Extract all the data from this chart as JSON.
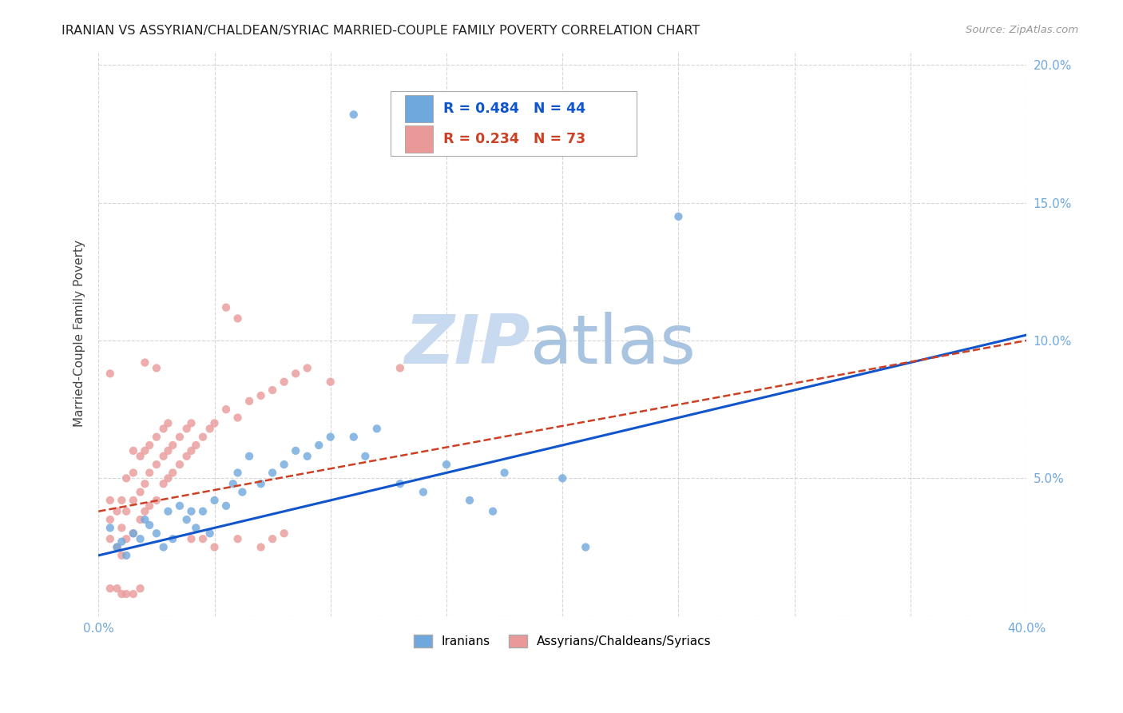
{
  "title": "IRANIAN VS ASSYRIAN/CHALDEAN/SYRIAC MARRIED-COUPLE FAMILY POVERTY CORRELATION CHART",
  "source": "Source: ZipAtlas.com",
  "ylabel": "Married-Couple Family Poverty",
  "xlim": [
    0.0,
    0.4
  ],
  "ylim": [
    0.0,
    0.205
  ],
  "legend_blue_label": "Iranians",
  "legend_pink_label": "Assyrians/Chaldeans/Syriacs",
  "R_blue": 0.484,
  "N_blue": 44,
  "R_pink": 0.234,
  "N_pink": 73,
  "blue_color": "#6fa8dc",
  "pink_color": "#ea9999",
  "trendline_blue_color": "#1155cc",
  "trendline_pink_color": "#cc4125",
  "background_color": "#ffffff",
  "grid_color": "#cccccc",
  "blue_trendline": [
    [
      0.0,
      0.022
    ],
    [
      0.4,
      0.102
    ]
  ],
  "pink_trendline": [
    [
      0.0,
      0.038
    ],
    [
      0.4,
      0.1
    ]
  ],
  "blue_scatter": [
    [
      0.005,
      0.032
    ],
    [
      0.008,
      0.025
    ],
    [
      0.01,
      0.027
    ],
    [
      0.012,
      0.022
    ],
    [
      0.015,
      0.03
    ],
    [
      0.018,
      0.028
    ],
    [
      0.02,
      0.035
    ],
    [
      0.022,
      0.033
    ],
    [
      0.025,
      0.03
    ],
    [
      0.028,
      0.025
    ],
    [
      0.03,
      0.038
    ],
    [
      0.032,
      0.028
    ],
    [
      0.035,
      0.04
    ],
    [
      0.038,
      0.035
    ],
    [
      0.04,
      0.038
    ],
    [
      0.042,
      0.032
    ],
    [
      0.045,
      0.038
    ],
    [
      0.048,
      0.03
    ],
    [
      0.05,
      0.042
    ],
    [
      0.055,
      0.04
    ],
    [
      0.058,
      0.048
    ],
    [
      0.06,
      0.052
    ],
    [
      0.062,
      0.045
    ],
    [
      0.065,
      0.058
    ],
    [
      0.07,
      0.048
    ],
    [
      0.075,
      0.052
    ],
    [
      0.08,
      0.055
    ],
    [
      0.085,
      0.06
    ],
    [
      0.09,
      0.058
    ],
    [
      0.095,
      0.062
    ],
    [
      0.1,
      0.065
    ],
    [
      0.11,
      0.065
    ],
    [
      0.115,
      0.058
    ],
    [
      0.12,
      0.068
    ],
    [
      0.13,
      0.048
    ],
    [
      0.14,
      0.045
    ],
    [
      0.15,
      0.055
    ],
    [
      0.16,
      0.042
    ],
    [
      0.17,
      0.038
    ],
    [
      0.175,
      0.052
    ],
    [
      0.2,
      0.05
    ],
    [
      0.21,
      0.025
    ],
    [
      0.25,
      0.145
    ],
    [
      0.11,
      0.182
    ]
  ],
  "pink_scatter": [
    [
      0.005,
      0.042
    ],
    [
      0.005,
      0.035
    ],
    [
      0.005,
      0.028
    ],
    [
      0.005,
      0.01
    ],
    [
      0.008,
      0.025
    ],
    [
      0.008,
      0.038
    ],
    [
      0.008,
      0.01
    ],
    [
      0.01,
      0.022
    ],
    [
      0.01,
      0.032
    ],
    [
      0.01,
      0.042
    ],
    [
      0.012,
      0.028
    ],
    [
      0.012,
      0.038
    ],
    [
      0.012,
      0.05
    ],
    [
      0.015,
      0.03
    ],
    [
      0.015,
      0.042
    ],
    [
      0.015,
      0.052
    ],
    [
      0.015,
      0.06
    ],
    [
      0.018,
      0.035
    ],
    [
      0.018,
      0.045
    ],
    [
      0.018,
      0.058
    ],
    [
      0.02,
      0.038
    ],
    [
      0.02,
      0.048
    ],
    [
      0.02,
      0.06
    ],
    [
      0.02,
      0.092
    ],
    [
      0.022,
      0.04
    ],
    [
      0.022,
      0.052
    ],
    [
      0.022,
      0.062
    ],
    [
      0.025,
      0.042
    ],
    [
      0.025,
      0.055
    ],
    [
      0.025,
      0.065
    ],
    [
      0.025,
      0.09
    ],
    [
      0.028,
      0.048
    ],
    [
      0.028,
      0.058
    ],
    [
      0.028,
      0.068
    ],
    [
      0.03,
      0.05
    ],
    [
      0.03,
      0.06
    ],
    [
      0.03,
      0.07
    ],
    [
      0.032,
      0.052
    ],
    [
      0.032,
      0.062
    ],
    [
      0.035,
      0.055
    ],
    [
      0.035,
      0.065
    ],
    [
      0.038,
      0.058
    ],
    [
      0.038,
      0.068
    ],
    [
      0.04,
      0.06
    ],
    [
      0.04,
      0.07
    ],
    [
      0.042,
      0.062
    ],
    [
      0.045,
      0.065
    ],
    [
      0.048,
      0.068
    ],
    [
      0.05,
      0.07
    ],
    [
      0.055,
      0.075
    ],
    [
      0.055,
      0.112
    ],
    [
      0.06,
      0.072
    ],
    [
      0.06,
      0.108
    ],
    [
      0.065,
      0.078
    ],
    [
      0.07,
      0.08
    ],
    [
      0.075,
      0.082
    ],
    [
      0.08,
      0.085
    ],
    [
      0.085,
      0.088
    ],
    [
      0.09,
      0.09
    ],
    [
      0.005,
      0.088
    ],
    [
      0.01,
      0.008
    ],
    [
      0.012,
      0.008
    ],
    [
      0.015,
      0.008
    ],
    [
      0.018,
      0.01
    ],
    [
      0.04,
      0.028
    ],
    [
      0.045,
      0.028
    ],
    [
      0.05,
      0.025
    ],
    [
      0.06,
      0.028
    ],
    [
      0.07,
      0.025
    ],
    [
      0.075,
      0.028
    ],
    [
      0.08,
      0.03
    ],
    [
      0.1,
      0.085
    ],
    [
      0.13,
      0.09
    ]
  ]
}
